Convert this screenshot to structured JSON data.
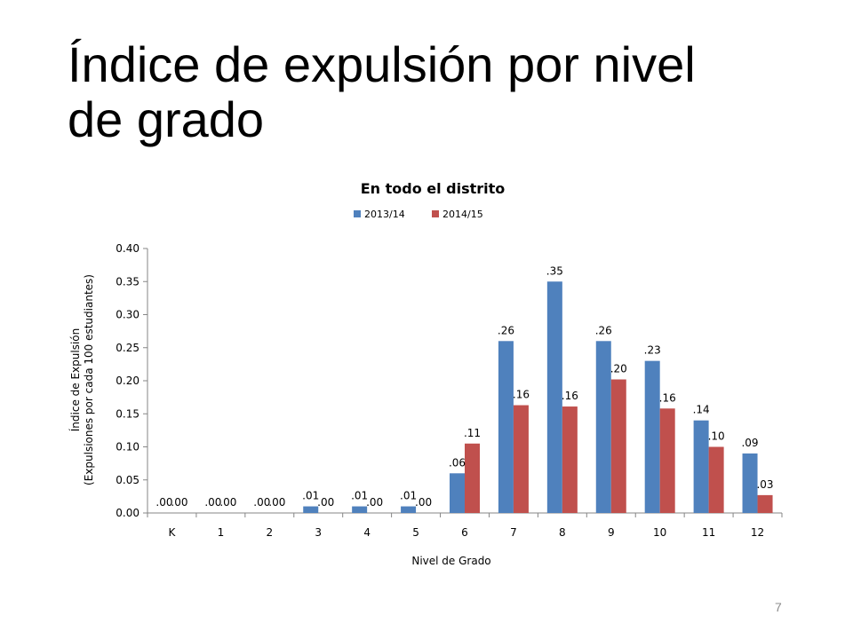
{
  "slide": {
    "title_line1": "Índice de expulsión por nivel",
    "title_line2": "de grado",
    "page_number": "7"
  },
  "chart_data": {
    "type": "bar",
    "title": "En todo el distrito",
    "xlabel": "Nivel de Grado",
    "ylabel_line1": "Índice de Expulsión",
    "ylabel_line2": "(Expulsiones por cada 100 estudiantes)",
    "ylim": [
      0,
      0.4
    ],
    "yticks": [
      0.0,
      0.05,
      0.1,
      0.15,
      0.2,
      0.25,
      0.3,
      0.35,
      0.4
    ],
    "ytick_labels": [
      "0.00",
      "0.05",
      "0.10",
      "0.15",
      "0.20",
      "0.25",
      "0.30",
      "0.35",
      "0.40"
    ],
    "legend_position": "top-center",
    "grid": false,
    "categories": [
      "K",
      "1",
      "2",
      "3",
      "4",
      "5",
      "6",
      "7",
      "8",
      "9",
      "10",
      "11",
      "12"
    ],
    "series": [
      {
        "name": "2013/14",
        "color": "#4f81bd",
        "values": [
          0.0,
          0.0,
          0.0,
          0.01,
          0.01,
          0.01,
          0.06,
          0.26,
          0.35,
          0.26,
          0.23,
          0.14,
          0.09
        ],
        "labels": [
          ".00",
          ".00",
          ".00",
          ".01",
          ".01",
          ".01",
          ".06",
          ".26",
          ".35",
          ".26",
          ".23",
          ".14",
          ".09"
        ]
      },
      {
        "name": "2014/15",
        "color": "#c0504d",
        "values": [
          0.0,
          0.0,
          0.0,
          0.0,
          0.0,
          0.0,
          0.105,
          0.163,
          0.161,
          0.202,
          0.158,
          0.1,
          0.027
        ],
        "labels": [
          ".00",
          ".00",
          ".00",
          ".00",
          ".00",
          ".00",
          ".11",
          ".16",
          ".16",
          ".20",
          ".16",
          ".10",
          ".03"
        ]
      }
    ]
  }
}
